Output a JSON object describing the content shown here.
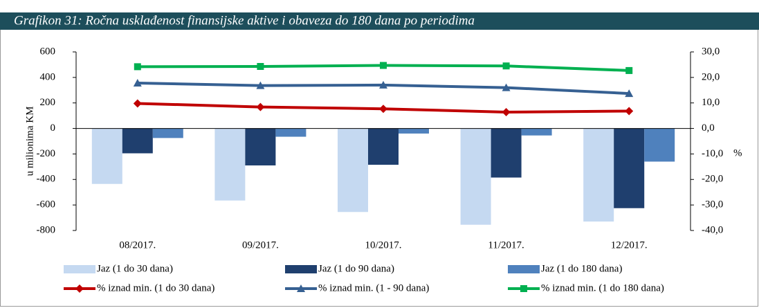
{
  "chart_data": {
    "type": "bar",
    "title": "Grafikon 31: Ročna usklađenost finansijske aktive i obaveza do 180 dana po periodima",
    "y_label": "u milionima KM",
    "y2_label": "%",
    "categories": [
      "08/2017.",
      "09/2017.",
      "10/2017.",
      "11/2017.",
      "12/2017."
    ],
    "ylim": [
      -800,
      600
    ],
    "yticks": [
      -800,
      -600,
      -400,
      -200,
      0,
      200,
      400,
      600
    ],
    "y2lim": [
      -40,
      30
    ],
    "y2ticks": [
      {
        "value": -40,
        "label": "-40,0"
      },
      {
        "value": -30,
        "label": "-30,0"
      },
      {
        "value": -20,
        "label": "-20,0"
      },
      {
        "value": -10,
        "label": "-10,0"
      },
      {
        "value": 0,
        "label": "0,0"
      },
      {
        "value": 10,
        "label": "10,0"
      },
      {
        "value": 20,
        "label": "20,0"
      },
      {
        "value": 30,
        "label": "30,0"
      }
    ],
    "series": [
      {
        "name": "Jaz (1 do 30 dana)",
        "type": "bar",
        "color": "#c5d9f1",
        "values": [
          -435,
          -565,
          -655,
          -755,
          -730
        ]
      },
      {
        "name": "Jaz (1 do 90 dana)",
        "type": "bar",
        "color": "#1f3f6e",
        "values": [
          -195,
          -290,
          -285,
          -385,
          -625
        ]
      },
      {
        "name": "Jaz (1 do 180 dana)",
        "type": "bar",
        "color": "#4f81bd",
        "values": [
          -75,
          -65,
          -40,
          -55,
          -260
        ]
      },
      {
        "name": "% iznad min. (1 do 30 dana)",
        "type": "line",
        "marker": "diamond",
        "axis": "y2",
        "color": "#c00000",
        "values": [
          9.8,
          8.4,
          7.7,
          6.4,
          6.8
        ]
      },
      {
        "name": "% iznad min. (1 - 90 dana)",
        "type": "line",
        "marker": "triangle",
        "axis": "y2",
        "color": "#366092",
        "values": [
          17.8,
          16.8,
          17.0,
          16.0,
          13.7
        ]
      },
      {
        "name": "% iznad min. (1 do 180 dana)",
        "type": "line",
        "marker": "square",
        "axis": "y2",
        "color": "#00b050",
        "values": [
          24.2,
          24.3,
          24.7,
          24.5,
          22.7
        ]
      }
    ]
  }
}
